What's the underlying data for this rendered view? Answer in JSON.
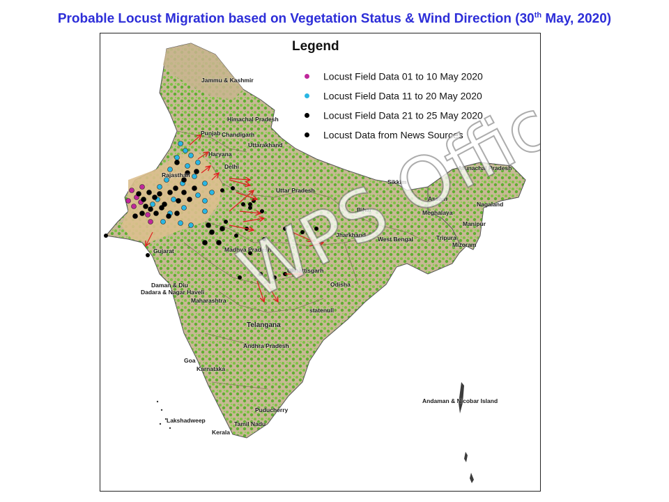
{
  "title": {
    "text": "Probable Locust Migration based on Vegetation Status & Wind Direction (30",
    "sup": "th",
    "tail": " May, 2020)"
  },
  "legend": {
    "title": "Legend",
    "items": [
      {
        "label": "Locust Field Data 01 to 10 May 2020",
        "color": "#c0279b"
      },
      {
        "label": "Locust Field Data 11 to 20 May 2020",
        "color": "#29b6e3"
      },
      {
        "label": "Locust Field Data 21 to 25 May 2020",
        "color": "#000000"
      },
      {
        "label": "Locust Data from News Sources",
        "color": "#000000"
      }
    ]
  },
  "state_labels": [
    {
      "id": "jk",
      "text": "Jammu & Kashmir"
    },
    {
      "id": "hp",
      "text": "Himachal Pradesh"
    },
    {
      "id": "pb",
      "text": "Punjab"
    },
    {
      "id": "ch",
      "text": "Chandigarh"
    },
    {
      "id": "uk",
      "text": "Uttarakhand"
    },
    {
      "id": "hr",
      "text": "Haryana"
    },
    {
      "id": "dl",
      "text": "Delhi"
    },
    {
      "id": "rj",
      "text": "Rajasthan"
    },
    {
      "id": "up",
      "text": "Uttar Pradesh"
    },
    {
      "id": "ar",
      "text": "Arunachal Pradesh"
    },
    {
      "id": "sk",
      "text": "Sikkim"
    },
    {
      "id": "as",
      "text": "Assam"
    },
    {
      "id": "nl",
      "text": "Nagaland"
    },
    {
      "id": "me",
      "text": "Meghalaya"
    },
    {
      "id": "mn",
      "text": "Manipur"
    },
    {
      "id": "br",
      "text": "Bihar"
    },
    {
      "id": "jh",
      "text": "Jharkhand"
    },
    {
      "id": "wb",
      "text": "West Bengal"
    },
    {
      "id": "tr",
      "text": "Tripura"
    },
    {
      "id": "mz",
      "text": "Mizoram"
    },
    {
      "id": "gj",
      "text": "Gujarat"
    },
    {
      "id": "mp",
      "text": "Madhya Pradesh"
    },
    {
      "id": "cg",
      "text": "Chhattisgarh"
    },
    {
      "id": "od",
      "text": "Odisha"
    },
    {
      "id": "dd",
      "text": "Daman & Diu"
    },
    {
      "id": "dnh",
      "text": "Dadara & Nagar Haveli"
    },
    {
      "id": "mh",
      "text": "Maharashtra"
    },
    {
      "id": "tg",
      "text": "Telangana"
    },
    {
      "id": "ap",
      "text": "Andhra Pradesh"
    },
    {
      "id": "ga",
      "text": "Goa"
    },
    {
      "id": "ka",
      "text": "Karnataka"
    },
    {
      "id": "py",
      "text": "Puducherry"
    },
    {
      "id": "ld",
      "text": "Lakshadweep"
    },
    {
      "id": "tn",
      "text": "Tamil Nadu"
    },
    {
      "id": "kl",
      "text": "Kerala"
    },
    {
      "id": "an",
      "text": "Andaman & Nicobar Island"
    },
    {
      "id": "statenull",
      "text": "statenull"
    }
  ],
  "watermark": "WPS Office",
  "colors": {
    "title": "#2d2ed8",
    "arrow": "#e02020",
    "vegetation": "#6fb83a",
    "arid": "#d9b98a",
    "land": "#c9b896"
  }
}
